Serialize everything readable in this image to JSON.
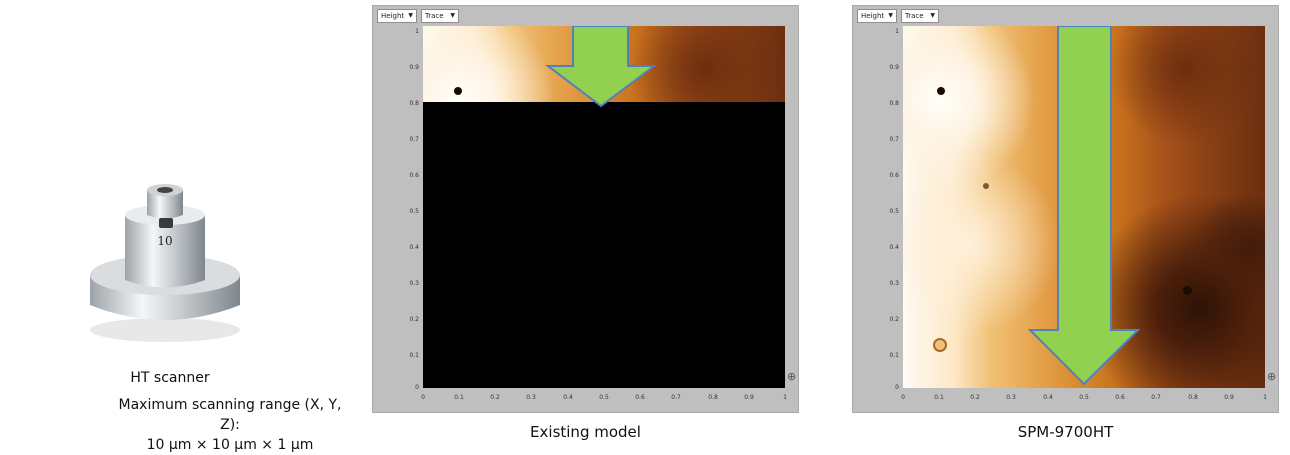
{
  "scanner": {
    "caption": "HT scanner",
    "spec_line1": "Maximum scanning range (X, Y, Z):",
    "spec_line2": "10 μm × 10 μm × 1 μm",
    "label_on_device": "10"
  },
  "panels": [
    {
      "caption": "Existing model",
      "dropdown_channel": "Height",
      "dropdown_mode": "Trace",
      "scan_progress": 0.21
    },
    {
      "caption": "SPM-9700HT",
      "dropdown_channel": "Height",
      "dropdown_mode": "Trace",
      "scan_progress": 1.0
    }
  ],
  "axis": {
    "y_ticks": [
      "1",
      "0.9",
      "0.8",
      "0.7",
      "0.6",
      "0.5",
      "0.4",
      "0.3",
      "0.2",
      "0.1",
      "0"
    ],
    "x_ticks": [
      "0",
      "0.1",
      "0.2",
      "0.3",
      "0.4",
      "0.5",
      "0.6",
      "0.7",
      "0.8",
      "0.9",
      "1"
    ]
  },
  "colors": {
    "arrow_fill": "#92d050",
    "arrow_stroke": "#4f81bd",
    "panel_bg": "#bfbfbf"
  },
  "icons": {
    "axis_settings": "axis-settings-icon"
  }
}
